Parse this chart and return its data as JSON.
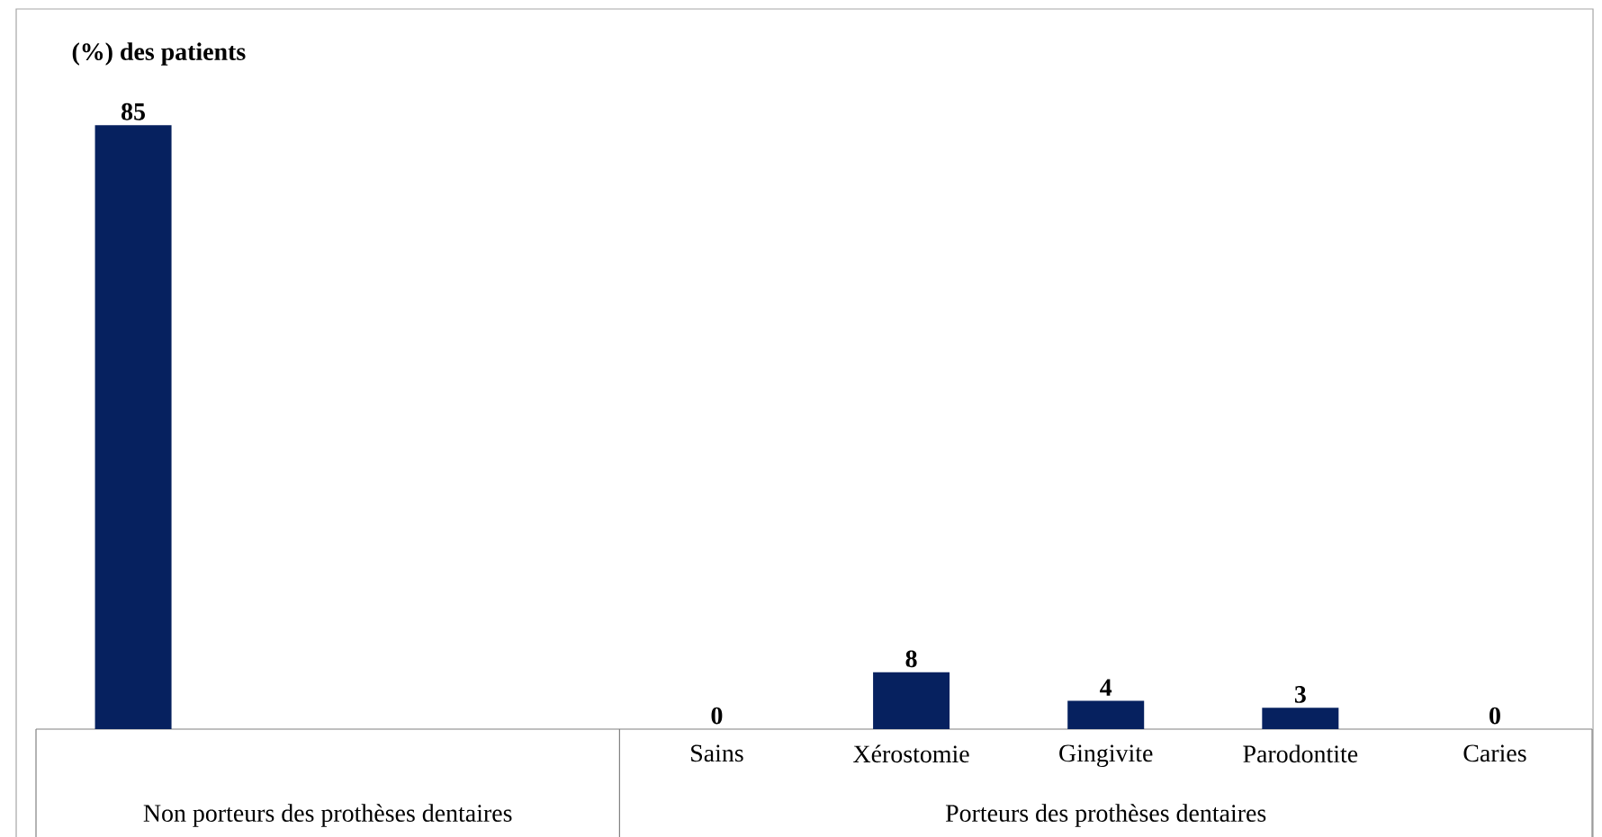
{
  "chart_data": {
    "type": "bar",
    "ylabel": "(%) des patients",
    "categories": [
      null,
      null,
      null,
      "Sains",
      "Xérostomie",
      "Gingivite",
      "Parodontite",
      "Caries"
    ],
    "values": [
      85,
      null,
      null,
      0,
      8,
      4,
      3,
      0
    ],
    "color": "#06215f",
    "data_labels": true,
    "annotations": [
      "Non porteurs des prothèses dentaires",
      "Porteurs des prothèses dentaires"
    ]
  }
}
